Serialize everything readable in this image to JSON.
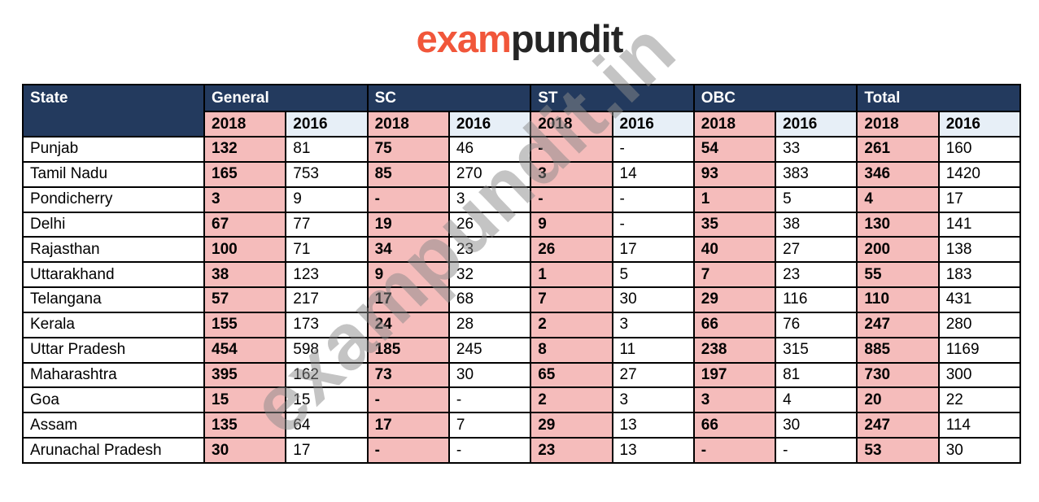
{
  "logo": {
    "exam": "exam",
    "pundit": "pundit"
  },
  "watermark": {
    "text": "exampundit.in"
  },
  "colors": {
    "header_navy": "#233a5e",
    "col_2018_pink": "#f5bcbb",
    "col_2016_blue": "#e7eff7",
    "logo_orange": "#f1563a",
    "logo_dark": "#252525",
    "watermark_gray": "#8a8a8a"
  },
  "table": {
    "state_header": "State",
    "groups": [
      "General",
      "SC",
      "ST",
      "OBC",
      "Total"
    ],
    "year_headers": [
      "2018",
      "2016"
    ],
    "rows": [
      {
        "state": "Punjab",
        "values": [
          "132",
          "81",
          "75",
          "46",
          "-",
          "-",
          "54",
          "33",
          "261",
          "160"
        ]
      },
      {
        "state": "Tamil Nadu",
        "values": [
          "165",
          "753",
          "85",
          "270",
          "3",
          "14",
          "93",
          "383",
          "346",
          "1420"
        ]
      },
      {
        "state": "Pondicherry",
        "values": [
          "3",
          "9",
          "-",
          "3",
          "-",
          "-",
          "1",
          "5",
          "4",
          "17"
        ]
      },
      {
        "state": "Delhi",
        "values": [
          "67",
          "77",
          "19",
          "26",
          "9",
          "-",
          "35",
          "38",
          "130",
          "141"
        ]
      },
      {
        "state": "Rajasthan",
        "values": [
          "100",
          "71",
          "34",
          "23",
          "26",
          "17",
          "40",
          "27",
          "200",
          "138"
        ]
      },
      {
        "state": "Uttarakhand",
        "values": [
          "38",
          "123",
          "9",
          "32",
          "1",
          "5",
          "7",
          "23",
          "55",
          "183"
        ]
      },
      {
        "state": "Telangana",
        "values": [
          "57",
          "217",
          "17",
          "68",
          "7",
          "30",
          "29",
          "116",
          "110",
          "431"
        ]
      },
      {
        "state": "Kerala",
        "values": [
          "155",
          "173",
          "24",
          "28",
          "2",
          "3",
          "66",
          "76",
          "247",
          "280"
        ]
      },
      {
        "state": "Uttar Pradesh",
        "values": [
          "454",
          "598",
          "185",
          "245",
          "8",
          "11",
          "238",
          "315",
          "885",
          "1169"
        ]
      },
      {
        "state": "Maharashtra",
        "values": [
          "395",
          "162",
          "73",
          "30",
          "65",
          "27",
          "197",
          "81",
          "730",
          "300"
        ]
      },
      {
        "state": "Goa",
        "values": [
          "15",
          "15",
          "-",
          "-",
          "2",
          "3",
          "3",
          "4",
          "20",
          "22"
        ]
      },
      {
        "state": "Assam",
        "values": [
          "135",
          "64",
          "17",
          "7",
          "29",
          "13",
          "66",
          "30",
          "247",
          "114"
        ]
      },
      {
        "state": "Arunachal Pradesh",
        "values": [
          "30",
          "17",
          "-",
          "-",
          "23",
          "13",
          "-",
          "-",
          "53",
          "30"
        ]
      }
    ]
  }
}
